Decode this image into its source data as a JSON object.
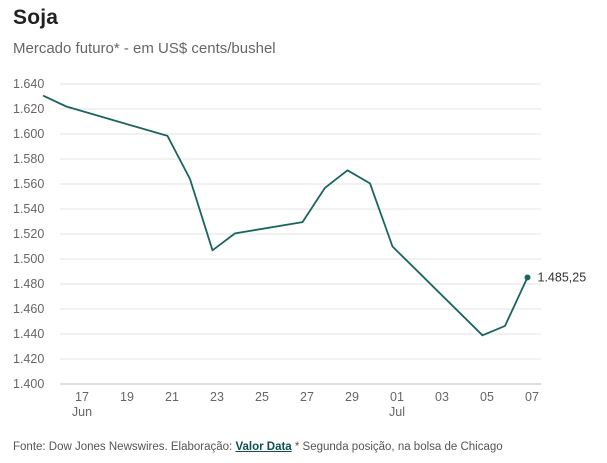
{
  "title": "Soja",
  "subtitle": "Mercado futuro* - em US$ cents/bushel",
  "footer": {
    "source": "Fonte: Dow Jones Newswires. Elaboração: ",
    "brand": "Valor Data",
    "note": " * Segunda posição, na bolsa de Chicago"
  },
  "colors": {
    "line": "#1a6560",
    "grid": "#e3e3e3",
    "axis": "#bdbdbd",
    "label": "#666666"
  },
  "chart_data": {
    "type": "line",
    "title": "Soja",
    "subtitle": "Mercado futuro* - em US$ cents/bushel",
    "xlabel": "",
    "ylabel": "",
    "ylim": [
      1400,
      1640
    ],
    "yticks": [
      1400,
      1420,
      1440,
      1460,
      1480,
      1500,
      1520,
      1540,
      1560,
      1580,
      1600,
      1620,
      1640
    ],
    "ytick_labels": [
      "1.400",
      "1.420",
      "1.440",
      "1.460",
      "1.480",
      "1.500",
      "1.520",
      "1.540",
      "1.560",
      "1.580",
      "1.600",
      "1.620",
      "1.640"
    ],
    "xlim": [
      -1,
      21
    ],
    "xticks": [
      {
        "x": 1,
        "label": "17",
        "sub": "Jun"
      },
      {
        "x": 3,
        "label": "19",
        "sub": ""
      },
      {
        "x": 5,
        "label": "21",
        "sub": ""
      },
      {
        "x": 7,
        "label": "23",
        "sub": ""
      },
      {
        "x": 9,
        "label": "25",
        "sub": ""
      },
      {
        "x": 11,
        "label": "27",
        "sub": ""
      },
      {
        "x": 13,
        "label": "29",
        "sub": ""
      },
      {
        "x": 15,
        "label": "01",
        "sub": "Jul"
      },
      {
        "x": 17,
        "label": "03",
        "sub": ""
      },
      {
        "x": 19,
        "label": "05",
        "sub": ""
      },
      {
        "x": 21,
        "label": "07",
        "sub": ""
      }
    ],
    "grid": true,
    "series": [
      {
        "name": "Soja",
        "points": [
          {
            "x": -0.7,
            "y": 1630.5
          },
          {
            "x": 0.3,
            "y": 1622
          },
          {
            "x": 4.8,
            "y": 1598.5
          },
          {
            "x": 5.8,
            "y": 1564
          },
          {
            "x": 6.8,
            "y": 1507
          },
          {
            "x": 7.8,
            "y": 1520.5
          },
          {
            "x": 10.8,
            "y": 1529.5
          },
          {
            "x": 11.8,
            "y": 1557
          },
          {
            "x": 12.8,
            "y": 1571
          },
          {
            "x": 13.8,
            "y": 1560.5
          },
          {
            "x": 14.8,
            "y": 1510
          },
          {
            "x": 18.8,
            "y": 1439
          },
          {
            "x": 19.8,
            "y": 1446.5
          },
          {
            "x": 20.8,
            "y": 1485.25
          }
        ]
      }
    ],
    "last_value_label": "1.485,25"
  }
}
